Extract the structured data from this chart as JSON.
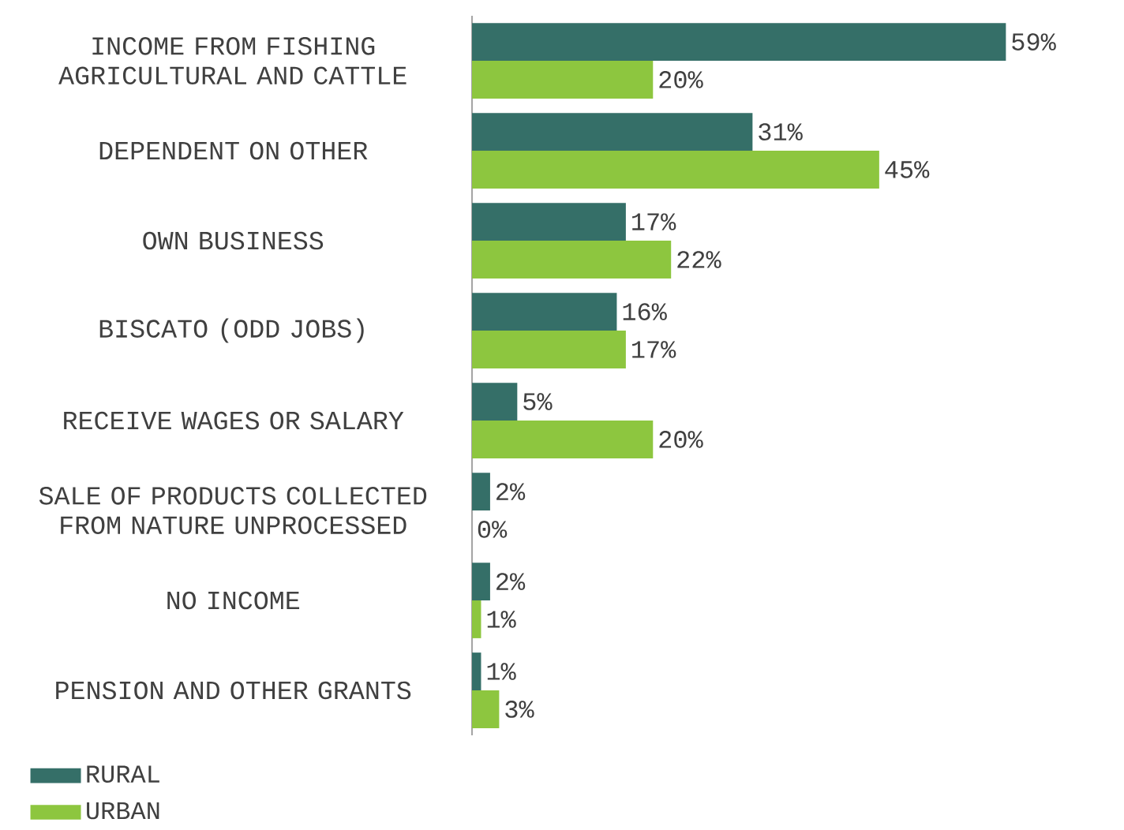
{
  "chart_data": {
    "type": "bar",
    "orientation": "horizontal",
    "categories": [
      "INCOME FROM FISHING AGRICULTURAL AND CATTLE",
      "DEPENDENT ON OTHER",
      "OWN BUSINESS",
      "BISCATO (ODD JOBS)",
      "RECEIVE WAGES OR SALARY",
      "SALE OF PRODUCTS COLLECTED FROM NATURE UNPROCESSED",
      "NO INCOME",
      "PENSION AND OTHER GRANTS"
    ],
    "series": [
      {
        "name": "RURAL",
        "color": "#356f68",
        "values": [
          59,
          31,
          17,
          16,
          5,
          2,
          2,
          1
        ],
        "value_labels": [
          "59%",
          "31%",
          "17%",
          "16%",
          "5%",
          "2%",
          "2%",
          "1%"
        ]
      },
      {
        "name": "URBAN",
        "color": "#8dc63f",
        "values": [
          20,
          45,
          22,
          17,
          20,
          0,
          1,
          3
        ],
        "value_labels": [
          "20%",
          "45%",
          "22%",
          "17%",
          "20%",
          "0%",
          "1%",
          "3%"
        ]
      }
    ],
    "legend": "bottom left",
    "tick_labels": "y"
  }
}
